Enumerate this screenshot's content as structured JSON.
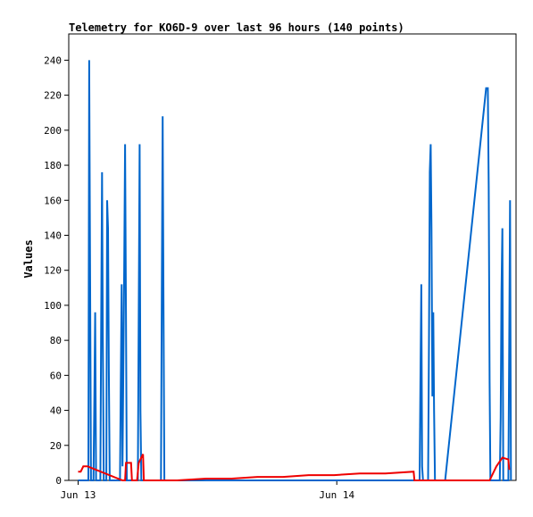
{
  "chart_data": {
    "type": "line",
    "title": "Telemetry for KO6D-9 over last 96 hours (140 points)",
    "xlabel": "",
    "ylabel": "Values",
    "ylim": [
      0,
      255
    ],
    "y_ticks": [
      0,
      20,
      40,
      60,
      80,
      100,
      120,
      140,
      160,
      180,
      200,
      220,
      240
    ],
    "x_unit": "hours since Jun 13 00:00",
    "xlim": [
      -1.1,
      51.3
    ],
    "x_ticks": [
      {
        "x": 0,
        "label": "Jun 13"
      },
      {
        "x": 30.3,
        "label": "Jun 14"
      }
    ],
    "grid": false,
    "legend": "none",
    "series": [
      {
        "color": "#0066cc",
        "points": [
          [
            0.0,
            0
          ],
          [
            1.2,
            0
          ],
          [
            1.3,
            240
          ],
          [
            1.4,
            120
          ],
          [
            1.5,
            0
          ],
          [
            1.8,
            0
          ],
          [
            1.9,
            48
          ],
          [
            2.0,
            96
          ],
          [
            2.1,
            0
          ],
          [
            2.6,
            0
          ],
          [
            2.7,
            88
          ],
          [
            2.8,
            176
          ],
          [
            2.9,
            80
          ],
          [
            3.0,
            0
          ],
          [
            3.3,
            0
          ],
          [
            3.4,
            160
          ],
          [
            3.5,
            144
          ],
          [
            3.6,
            64
          ],
          [
            3.7,
            0
          ],
          [
            4.9,
            0
          ],
          [
            5.0,
            56
          ],
          [
            5.1,
            112
          ],
          [
            5.2,
            8
          ],
          [
            5.4,
            120
          ],
          [
            5.5,
            192
          ],
          [
            5.6,
            96
          ],
          [
            5.7,
            0
          ],
          [
            7.0,
            0
          ],
          [
            7.1,
            96
          ],
          [
            7.2,
            192
          ],
          [
            7.3,
            40
          ],
          [
            7.4,
            0
          ],
          [
            9.7,
            0
          ],
          [
            9.8,
            104
          ],
          [
            9.9,
            208
          ],
          [
            10.0,
            104
          ],
          [
            10.1,
            0
          ],
          [
            40.0,
            0
          ],
          [
            40.1,
            56
          ],
          [
            40.2,
            112
          ],
          [
            40.3,
            8
          ],
          [
            40.4,
            0
          ],
          [
            41.0,
            0
          ],
          [
            41.1,
            80
          ],
          [
            41.2,
            176
          ],
          [
            41.3,
            192
          ],
          [
            41.4,
            144
          ],
          [
            41.5,
            48
          ],
          [
            41.6,
            96
          ],
          [
            41.7,
            40
          ],
          [
            41.8,
            0
          ],
          [
            43.0,
            0
          ],
          [
            47.8,
            224
          ],
          [
            48.0,
            224
          ],
          [
            48.1,
            168
          ],
          [
            48.2,
            56
          ],
          [
            48.3,
            0
          ],
          [
            49.4,
            0
          ],
          [
            49.5,
            36
          ],
          [
            49.6,
            108
          ],
          [
            49.7,
            144
          ],
          [
            49.8,
            0
          ],
          [
            50.4,
            0
          ],
          [
            50.5,
            80
          ],
          [
            50.6,
            160
          ],
          [
            50.7,
            0
          ]
        ]
      },
      {
        "color": "#ee0000",
        "points": [
          [
            0.0,
            5
          ],
          [
            0.3,
            5
          ],
          [
            0.6,
            8
          ],
          [
            1.1,
            8
          ],
          [
            5.2,
            0
          ],
          [
            5.5,
            0
          ],
          [
            5.6,
            10
          ],
          [
            6.2,
            10
          ],
          [
            6.3,
            0
          ],
          [
            6.9,
            0
          ],
          [
            7.1,
            10
          ],
          [
            7.6,
            15
          ],
          [
            7.7,
            0
          ],
          [
            11.6,
            0
          ],
          [
            15.0,
            1
          ],
          [
            18.0,
            1
          ],
          [
            21.0,
            2
          ],
          [
            24.0,
            2
          ],
          [
            27.0,
            3
          ],
          [
            30.0,
            3
          ],
          [
            33.0,
            4
          ],
          [
            36.0,
            4
          ],
          [
            39.3,
            5
          ],
          [
            39.4,
            0
          ],
          [
            48.2,
            0
          ],
          [
            49.0,
            8
          ],
          [
            49.7,
            13
          ],
          [
            50.4,
            12
          ],
          [
            50.5,
            6
          ]
        ]
      }
    ]
  }
}
